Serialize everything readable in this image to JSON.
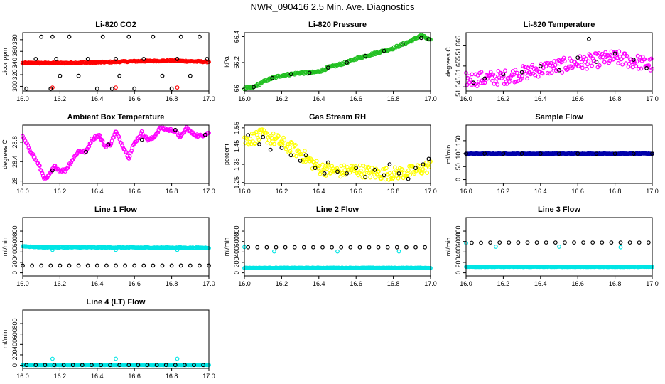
{
  "figure_title": "NWR_090416  2.5 Min. Ave. Diagnostics",
  "chart_data": [
    {
      "id": "co2",
      "type": "scatter",
      "title": "Li-820 CO2",
      "ylabel": "Licor ppm",
      "xlim": [
        16.0,
        17.0
      ],
      "ylim": [
        292,
        392
      ],
      "xticks": [
        "16.0",
        "16.2",
        "16.4",
        "16.6",
        "16.8",
        "17.0"
      ],
      "yticks": [
        300,
        320,
        340,
        360,
        380
      ],
      "series": [
        {
          "name": "sample",
          "color": "#ff0000",
          "shape": "dense",
          "x": [
            16.0,
            16.2,
            16.4,
            16.6,
            16.8,
            17.0
          ],
          "y": [
            340,
            340,
            341,
            343,
            344,
            342
          ],
          "noise": 1
        },
        {
          "name": "outliers",
          "color": "#ff0000",
          "shape": "sparse",
          "x": [
            16.16,
            16.5,
            16.83
          ],
          "y": [
            298,
            298,
            298
          ]
        },
        {
          "name": "cal",
          "color": "#000000",
          "shape": "sparse",
          "x": [
            16.02,
            16.07,
            16.1,
            16.15,
            16.16,
            16.18,
            16.2,
            16.25,
            16.3,
            16.35,
            16.4,
            16.43,
            16.48,
            16.5,
            16.52,
            16.57,
            16.6,
            16.65,
            16.7,
            16.75,
            16.8,
            16.83,
            16.85,
            16.9,
            16.95,
            16.99
          ],
          "y": [
            296,
            347,
            385,
            296,
            385,
            347,
            318,
            385,
            318,
            347,
            296,
            385,
            296,
            347,
            318,
            385,
            296,
            347,
            385,
            318,
            296,
            347,
            385,
            318,
            385,
            347
          ]
        }
      ]
    },
    {
      "id": "pressure",
      "type": "scatter",
      "title": "Li-820 Pressure",
      "ylabel": "kPa",
      "xlim": [
        16.0,
        17.0
      ],
      "ylim": [
        65.98,
        66.43
      ],
      "xticks": [
        "16.0",
        "16.2",
        "16.4",
        "16.6",
        "16.8",
        "17.0"
      ],
      "yticks": [
        66.0,
        66.2,
        66.4
      ],
      "series": [
        {
          "name": "sample",
          "color": "#22c022",
          "shape": "dense",
          "x": [
            16.0,
            16.05,
            16.1,
            16.15,
            16.2,
            16.25,
            16.3,
            16.35,
            16.4,
            16.45,
            16.5,
            16.55,
            16.6,
            16.65,
            16.7,
            16.75,
            16.8,
            16.85,
            16.9,
            16.95,
            17.0
          ],
          "y": [
            66.0,
            66.01,
            66.05,
            66.08,
            66.1,
            66.11,
            66.12,
            66.12,
            66.13,
            66.16,
            66.18,
            66.2,
            66.23,
            66.25,
            66.27,
            66.29,
            66.31,
            66.34,
            66.37,
            66.41,
            66.37
          ],
          "noise": 0.008
        },
        {
          "name": "cal",
          "color": "#000000",
          "shape": "sparse",
          "x": [
            16.05,
            16.15,
            16.25,
            16.35,
            16.45,
            16.55,
            16.65,
            16.75,
            16.85,
            16.95,
            16.99
          ],
          "y": [
            66.01,
            66.08,
            66.11,
            66.12,
            66.16,
            66.2,
            66.25,
            66.29,
            66.34,
            66.39,
            66.38
          ]
        }
      ]
    },
    {
      "id": "licor-temp",
      "type": "scatter",
      "title": "Li-820 Temperature",
      "ylabel": "degrees C",
      "xlim": [
        16.0,
        17.0
      ],
      "ylim": [
        51.643,
        51.671
      ],
      "xticks": [
        "16.0",
        "16.2",
        "16.4",
        "16.6",
        "16.8",
        "17.0"
      ],
      "yticks": [
        51.645,
        51.655,
        51.665
      ],
      "series": [
        {
          "name": "sample",
          "color": "#ff00ff",
          "shape": "dense",
          "x": [
            16.0,
            16.2,
            16.4,
            16.6,
            16.8,
            17.0
          ],
          "y": [
            51.6485,
            51.6495,
            51.6535,
            51.6565,
            51.659,
            51.6555
          ],
          "noise": 0.0035
        },
        {
          "name": "cal",
          "color": "#000000",
          "shape": "sparse",
          "x": [
            16.04,
            16.1,
            16.2,
            16.3,
            16.4,
            16.5,
            16.6,
            16.66,
            16.7,
            16.8,
            16.9,
            16.97
          ],
          "y": [
            51.647,
            51.649,
            51.651,
            51.652,
            51.655,
            51.653,
            51.659,
            51.668,
            51.657,
            51.661,
            51.658,
            51.654
          ]
        }
      ]
    },
    {
      "id": "ambient-box-temp",
      "type": "scatter",
      "title": "Ambient Box Temperature",
      "ylabel": "degrees C",
      "xlim": [
        16.0,
        17.0
      ],
      "ylim": [
        27.95,
        29.15
      ],
      "xticks": [
        "16.0",
        "16.2",
        "16.4",
        "16.6",
        "16.8",
        "17.0"
      ],
      "yticks": [
        28.0,
        28.4,
        28.8
      ],
      "series": [
        {
          "name": "sample",
          "color": "#ff00ff",
          "shape": "dense",
          "x": [
            16.0,
            16.03,
            16.06,
            16.09,
            16.12,
            16.14,
            16.17,
            16.2,
            16.23,
            16.26,
            16.3,
            16.34,
            16.37,
            16.41,
            16.44,
            16.47,
            16.5,
            16.53,
            16.57,
            16.6,
            16.64,
            16.67,
            16.7,
            16.74,
            16.78,
            16.81,
            16.85,
            16.88,
            16.91,
            16.95,
            17.0
          ],
          "y": [
            28.9,
            28.7,
            28.5,
            28.3,
            28.03,
            28.1,
            28.3,
            28.22,
            28.22,
            28.4,
            28.62,
            28.6,
            28.85,
            28.95,
            28.72,
            28.75,
            29.02,
            28.78,
            28.48,
            28.78,
            29.0,
            28.85,
            28.88,
            29.1,
            29.05,
            29.05,
            28.9,
            29.1,
            28.98,
            28.92,
            29.0
          ],
          "noise": 0.03
        },
        {
          "name": "cal",
          "color": "#000000",
          "shape": "sparse",
          "x": [
            16.16,
            16.34,
            16.46,
            16.64,
            16.82,
            16.98
          ],
          "y": [
            28.22,
            28.6,
            28.75,
            28.85,
            29.05,
            28.95
          ]
        }
      ]
    },
    {
      "id": "gas-rh",
      "type": "scatter",
      "title": "Gas Stream RH",
      "ylabel": "percent",
      "xlim": [
        16.0,
        17.0
      ],
      "ylim": [
        1.245,
        1.565
      ],
      "xticks": [
        "16.0",
        "16.2",
        "16.4",
        "16.6",
        "16.8",
        "17.0"
      ],
      "yticks": [
        1.25,
        1.35,
        1.45,
        1.55
      ],
      "series": [
        {
          "name": "sample",
          "color": "#ffff00",
          "shape": "dense",
          "x": [
            16.0,
            16.1,
            16.2,
            16.3,
            16.4,
            16.5,
            16.6,
            16.7,
            16.8,
            16.9,
            17.0
          ],
          "y": [
            1.48,
            1.51,
            1.47,
            1.41,
            1.33,
            1.31,
            1.32,
            1.3,
            1.3,
            1.31,
            1.34
          ],
          "noise": 0.035
        },
        {
          "name": "cal",
          "color": "#000000",
          "shape": "sparse",
          "x": [
            16.02,
            16.08,
            16.1,
            16.14,
            16.2,
            16.25,
            16.3,
            16.33,
            16.38,
            16.43,
            16.45,
            16.5,
            16.55,
            16.6,
            16.65,
            16.7,
            16.75,
            16.78,
            16.83,
            16.88,
            16.92,
            16.96,
            16.99
          ],
          "y": [
            1.51,
            1.46,
            1.5,
            1.43,
            1.44,
            1.4,
            1.37,
            1.4,
            1.33,
            1.3,
            1.36,
            1.31,
            1.3,
            1.33,
            1.28,
            1.32,
            1.29,
            1.35,
            1.3,
            1.27,
            1.33,
            1.35,
            1.38
          ]
        }
      ]
    },
    {
      "id": "sample-flow",
      "type": "scatter",
      "title": "Sample Flow",
      "ylabel": "ml/min",
      "xlim": [
        16.0,
        17.0
      ],
      "ylim": [
        -15,
        210
      ],
      "xticks": [
        "16.0",
        "16.2",
        "16.4",
        "16.6",
        "16.8",
        "17.0"
      ],
      "yticks": [
        0,
        50,
        100,
        150
      ],
      "series": [
        {
          "name": "sample",
          "color": "#0000aa",
          "shape": "dense",
          "x": [
            16.0,
            17.0
          ],
          "y": [
            100,
            100
          ],
          "noise": 1
        },
        {
          "name": "cal",
          "color": "#000000",
          "shape": "sparse",
          "x": [
            16.0,
            16.1,
            16.2,
            16.3,
            16.4,
            16.5,
            16.6,
            16.7,
            16.8,
            16.9,
            17.0
          ],
          "y": [
            100,
            100,
            100,
            100,
            100,
            100,
            100,
            100,
            100,
            100,
            100
          ]
        }
      ]
    },
    {
      "id": "line1-flow",
      "type": "scatter",
      "title": "Line 1 Flow",
      "ylabel": "ml/min",
      "xlim": [
        16.0,
        17.0
      ],
      "ylim": [
        -60,
        1060
      ],
      "xticks": [
        "16.0",
        "16.2",
        "16.4",
        "16.6",
        "16.8",
        "17.0"
      ],
      "yticks": [
        0,
        200,
        400,
        600,
        800
      ],
      "series": [
        {
          "name": "sample",
          "color": "#00e5e5",
          "shape": "dense",
          "x": [
            16.0,
            16.1,
            17.0
          ],
          "y": [
            510,
            490,
            480
          ],
          "noise": 8
        },
        {
          "name": "dips",
          "color": "#00e5e5",
          "shape": "sparse",
          "x": [
            16.16,
            16.5,
            16.83
          ],
          "y": [
            440,
            440,
            440
          ]
        },
        {
          "name": "cal",
          "color": "#000000",
          "shape": "sparse",
          "x": [
            16.0,
            16.05,
            16.1,
            16.15,
            16.2,
            16.25,
            16.3,
            16.35,
            16.4,
            16.45,
            16.5,
            16.55,
            16.6,
            16.65,
            16.7,
            16.75,
            16.8,
            16.85,
            16.9,
            16.95,
            17.0
          ],
          "y": [
            140,
            140,
            140,
            140,
            140,
            140,
            140,
            140,
            140,
            140,
            140,
            140,
            140,
            140,
            140,
            140,
            140,
            140,
            140,
            140,
            140
          ]
        }
      ]
    },
    {
      "id": "line2-flow",
      "type": "scatter",
      "title": "Line 2 Flow",
      "ylabel": "ml/min",
      "xlim": [
        16.0,
        17.0
      ],
      "ylim": [
        -60,
        1060
      ],
      "xticks": [
        "16.0",
        "16.2",
        "16.4",
        "16.6",
        "16.8",
        "17.0"
      ],
      "yticks": [
        0,
        200,
        400,
        600,
        800
      ],
      "series": [
        {
          "name": "sample",
          "color": "#00e5e5",
          "shape": "dense",
          "x": [
            16.0,
            17.0
          ],
          "y": [
            95,
            95
          ],
          "noise": 5
        },
        {
          "name": "dips",
          "color": "#00e5e5",
          "shape": "sparse",
          "x": [
            16.0,
            16.16,
            16.5,
            16.83
          ],
          "y": [
            495,
            410,
            410,
            410
          ]
        },
        {
          "name": "cal",
          "color": "#000000",
          "shape": "sparse",
          "x": [
            16.02,
            16.07,
            16.12,
            16.17,
            16.22,
            16.27,
            16.32,
            16.37,
            16.42,
            16.47,
            16.52,
            16.57,
            16.62,
            16.67,
            16.72,
            16.77,
            16.82,
            16.87,
            16.92,
            16.97
          ],
          "y": [
            490,
            490,
            490,
            490,
            490,
            490,
            490,
            490,
            490,
            490,
            490,
            490,
            490,
            490,
            490,
            490,
            490,
            490,
            490,
            490
          ]
        }
      ]
    },
    {
      "id": "line3-flow",
      "type": "scatter",
      "title": "Line 3 Flow",
      "ylabel": "ml/min",
      "xlim": [
        16.0,
        17.0
      ],
      "ylim": [
        -60,
        1060
      ],
      "xticks": [
        "16.0",
        "16.2",
        "16.4",
        "16.6",
        "16.8",
        "17.0"
      ],
      "yticks": [
        0,
        200,
        400,
        600,
        800
      ],
      "series": [
        {
          "name": "sample",
          "color": "#00e5e5",
          "shape": "dense",
          "x": [
            16.0,
            17.0
          ],
          "y": [
            115,
            115
          ],
          "noise": 4
        },
        {
          "name": "dips",
          "color": "#00e5e5",
          "shape": "sparse",
          "x": [
            16.0,
            16.16,
            16.5,
            16.83
          ],
          "y": [
            570,
            500,
            500,
            490
          ]
        },
        {
          "name": "cal",
          "color": "#000000",
          "shape": "sparse",
          "x": [
            16.03,
            16.08,
            16.13,
            16.18,
            16.23,
            16.28,
            16.33,
            16.38,
            16.43,
            16.48,
            16.53,
            16.58,
            16.63,
            16.68,
            16.73,
            16.78,
            16.83,
            16.88,
            16.93,
            16.98
          ],
          "y": [
            575,
            575,
            580,
            580,
            580,
            580,
            580,
            580,
            580,
            580,
            580,
            580,
            580,
            580,
            580,
            580,
            580,
            580,
            580,
            580
          ]
        }
      ]
    },
    {
      "id": "line4-flow",
      "type": "scatter",
      "title": "Line 4 (LT) Flow",
      "ylabel": "ml/min",
      "xlim": [
        16.0,
        17.0
      ],
      "ylim": [
        -60,
        1060
      ],
      "xticks": [
        "16.0",
        "16.2",
        "16.4",
        "16.6",
        "16.8",
        "17.0"
      ],
      "yticks": [
        0,
        200,
        400,
        600,
        800
      ],
      "series": [
        {
          "name": "sample",
          "color": "#00e5e5",
          "shape": "dense",
          "x": [
            16.0,
            17.0
          ],
          "y": [
            5,
            5
          ],
          "noise": 1
        },
        {
          "name": "spikes",
          "color": "#00e5e5",
          "shape": "sparse",
          "x": [
            16.16,
            16.5,
            16.83
          ],
          "y": [
            125,
            125,
            125
          ]
        },
        {
          "name": "cal",
          "color": "#000000",
          "shape": "sparse",
          "x": [
            16.02,
            16.07,
            16.12,
            16.17,
            16.22,
            16.27,
            16.32,
            16.37,
            16.42,
            16.47,
            16.52,
            16.57,
            16.62,
            16.67,
            16.72,
            16.77,
            16.82,
            16.87,
            16.92,
            16.97
          ],
          "y": [
            5,
            5,
            5,
            5,
            5,
            5,
            5,
            5,
            5,
            5,
            5,
            5,
            5,
            5,
            5,
            5,
            5,
            5,
            5,
            5
          ]
        }
      ]
    }
  ]
}
